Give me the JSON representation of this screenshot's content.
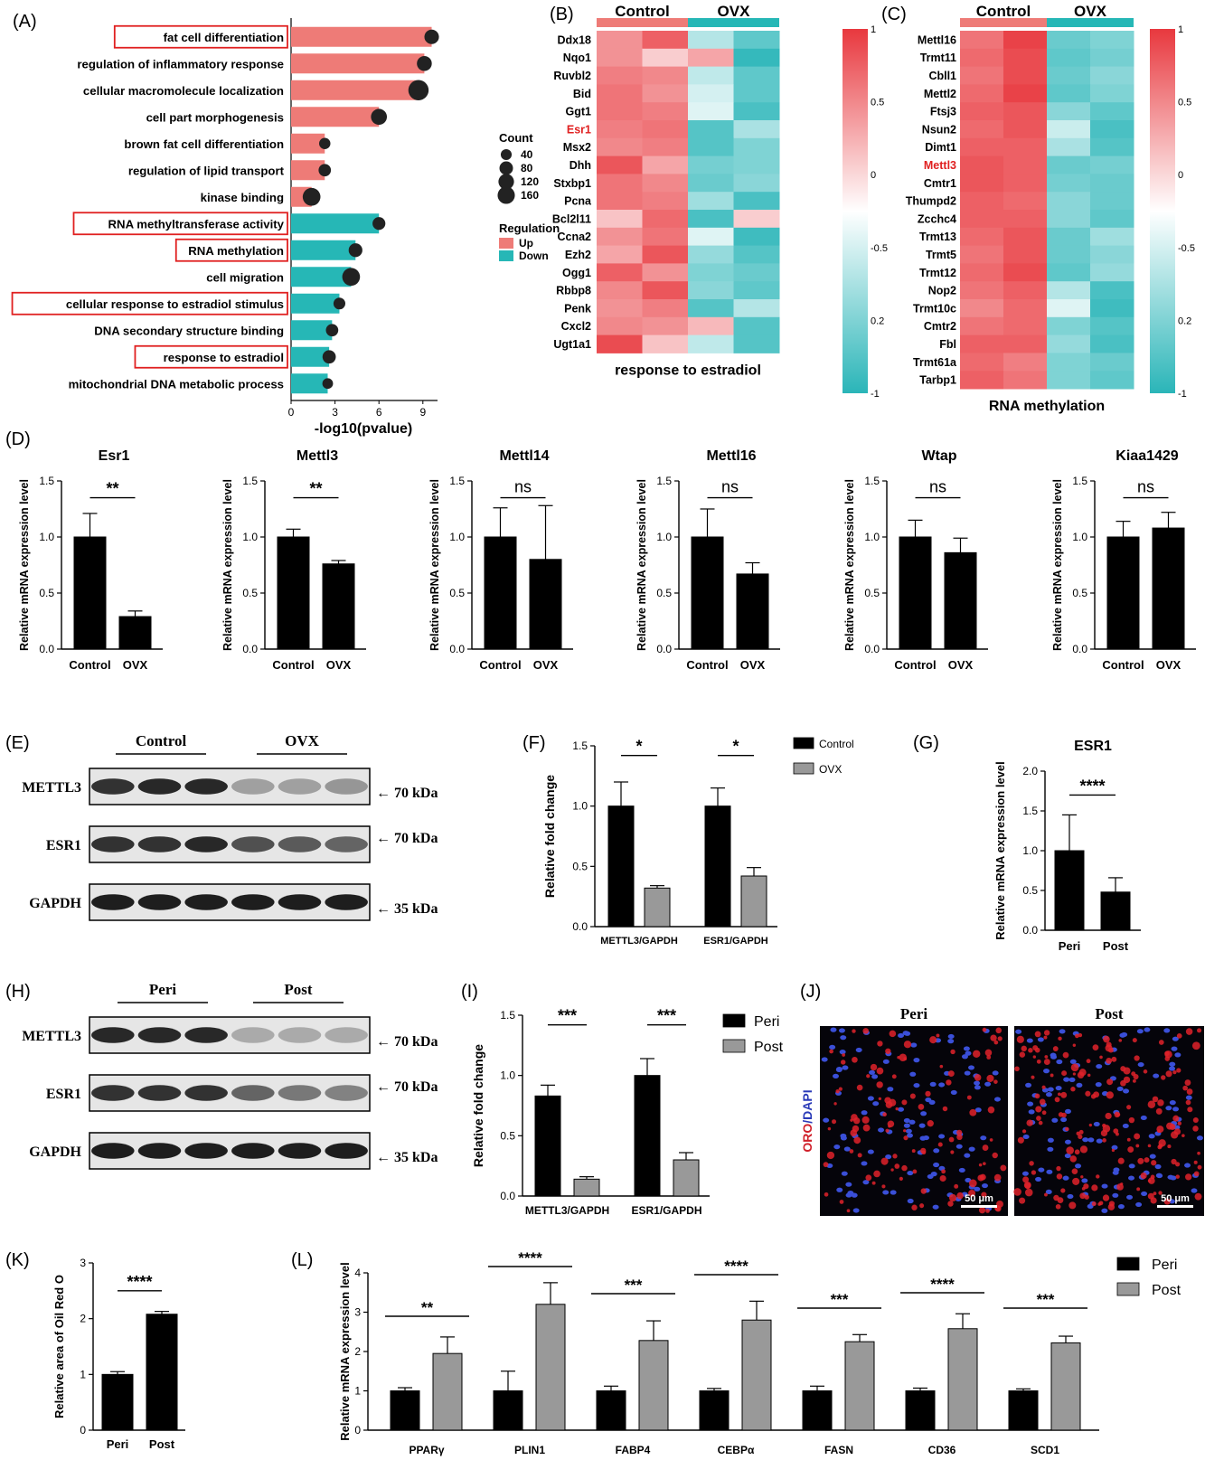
{
  "panel_letters": {
    "A": "(A)",
    "B": "(B)",
    "C": "(C)",
    "D": "(D)",
    "E": "(E)",
    "F": "(F)",
    "G": "(G)",
    "H": "(H)",
    "I": "(I)",
    "J": "(J)",
    "K": "(K)",
    "L": "(L)"
  },
  "colors": {
    "up": "#EE7B77",
    "down": "#26B7B6",
    "highlight_box": "#E02020",
    "control_bar": "#000000",
    "ovx_bar": "#999999",
    "heat_high": "#E8383E",
    "heat_mid": "#FFFFFF",
    "heat_low": "#2AB5B8",
    "red_label": "#E02020"
  },
  "panelA": {
    "terms": [
      {
        "label": "fat cell differentiation",
        "value": 9.6,
        "count": 60,
        "reg": "Up",
        "boxed": true
      },
      {
        "label": "regulation of inflammatory response",
        "value": 9.1,
        "count": 65,
        "reg": "Up",
        "boxed": false
      },
      {
        "label": "cellular macromolecule localization",
        "value": 8.7,
        "count": 160,
        "reg": "Up",
        "boxed": false
      },
      {
        "label": "cell part morphogenesis",
        "value": 6.0,
        "count": 80,
        "reg": "Up",
        "boxed": false
      },
      {
        "label": "brown fat cell differentiation",
        "value": 2.3,
        "count": 25,
        "reg": "Up",
        "boxed": false
      },
      {
        "label": "regulation of lipid transport",
        "value": 2.3,
        "count": 35,
        "reg": "Up",
        "boxed": false
      },
      {
        "label": "kinase binding",
        "value": 1.4,
        "count": 110,
        "reg": "Up",
        "boxed": false
      },
      {
        "label": "RNA methyltransferase activity",
        "value": 6.0,
        "count": 40,
        "reg": "Down",
        "boxed": true
      },
      {
        "label": "RNA methylation",
        "value": 4.4,
        "count": 50,
        "reg": "Down",
        "boxed": true
      },
      {
        "label": "cell migration",
        "value": 4.1,
        "count": 110,
        "reg": "Down",
        "boxed": false
      },
      {
        "label": "cellular response to estradiol stimulus",
        "value": 3.3,
        "count": 30,
        "reg": "Down",
        "boxed": true
      },
      {
        "label": "DNA secondary structure binding",
        "value": 2.8,
        "count": 35,
        "reg": "Down",
        "boxed": false
      },
      {
        "label": "response to estradiol",
        "value": 2.6,
        "count": 45,
        "reg": "Down",
        "boxed": true
      },
      {
        "label": "mitochondrial DNA metabolic process",
        "value": 2.5,
        "count": 20,
        "reg": "Down",
        "boxed": false
      }
    ],
    "xticks": [
      "0",
      "3",
      "6",
      "9"
    ],
    "xlabel": "-log10(pvalue)",
    "legend_count_title": "Count",
    "legend_counts": [
      "40",
      "80",
      "120",
      "160"
    ],
    "legend_reg_title": "Regulation",
    "legend_reg": [
      "Up",
      "Down"
    ]
  },
  "panelB": {
    "groups": [
      "Control",
      "OVX"
    ],
    "title": "response to estradiol",
    "genes": [
      "Ddx18",
      "Nqo1",
      "Ruvbl2",
      "Bid",
      "Ggt1",
      "Esr1",
      "Msx2",
      "Dhh",
      "Stxbp1",
      "Pcna",
      "Bcl2l11",
      "Ccna2",
      "Ezh2",
      "Ogg1",
      "Rbbp8",
      "Penk",
      "Cxcl2",
      "Ugt1a1"
    ],
    "red_gene": "Esr1",
    "matrix": [
      [
        0.55,
        0.8,
        -0.35,
        -0.75
      ],
      [
        0.55,
        0.25,
        0.45,
        -0.95
      ],
      [
        0.65,
        0.6,
        -0.3,
        -0.75
      ],
      [
        0.7,
        0.55,
        -0.2,
        -0.75
      ],
      [
        0.7,
        0.65,
        -0.15,
        -0.85
      ],
      [
        0.65,
        0.7,
        -0.8,
        -0.4
      ],
      [
        0.6,
        0.65,
        -0.8,
        -0.6
      ],
      [
        0.85,
        0.45,
        -0.65,
        -0.6
      ],
      [
        0.7,
        0.6,
        -0.7,
        -0.55
      ],
      [
        0.7,
        0.65,
        -0.45,
        -0.85
      ],
      [
        0.3,
        0.75,
        -0.85,
        0.25
      ],
      [
        0.55,
        0.7,
        -0.15,
        -0.9
      ],
      [
        0.45,
        0.85,
        -0.5,
        -0.8
      ],
      [
        0.8,
        0.55,
        -0.6,
        -0.7
      ],
      [
        0.6,
        0.85,
        -0.55,
        -0.75
      ],
      [
        0.55,
        0.65,
        -0.8,
        -0.35
      ],
      [
        0.6,
        0.55,
        0.35,
        -0.8
      ],
      [
        0.9,
        0.3,
        -0.3,
        -0.8
      ]
    ],
    "scale_labels": [
      "1",
      "0.5",
      "0",
      "-0.5",
      "0.2",
      "-1"
    ]
  },
  "panelC": {
    "groups": [
      "Control",
      "OVX"
    ],
    "title": "RNA methylation",
    "genes": [
      "Mettl16",
      "Trmt11",
      "Cbll1",
      "Mettl2",
      "Ftsj3",
      "Nsun2",
      "Dimt1",
      "Mettl3",
      "Cmtr1",
      "Thumpd2",
      "Zcchc4",
      "Trmt13",
      "Trmt5",
      "Trmt12",
      "Nop2",
      "Trmt10c",
      "Cmtr2",
      "Fbl",
      "Trmt61a",
      "Tarbp1"
    ],
    "red_gene": "Mettl3",
    "matrix": [
      [
        0.7,
        0.95,
        -0.7,
        -0.6
      ],
      [
        0.75,
        0.9,
        -0.75,
        -0.65
      ],
      [
        0.7,
        0.9,
        -0.7,
        -0.55
      ],
      [
        0.75,
        0.95,
        -0.75,
        -0.6
      ],
      [
        0.8,
        0.85,
        -0.55,
        -0.75
      ],
      [
        0.75,
        0.85,
        -0.25,
        -0.85
      ],
      [
        0.8,
        0.8,
        -0.4,
        -0.8
      ],
      [
        0.85,
        0.8,
        -0.7,
        -0.65
      ],
      [
        0.85,
        0.8,
        -0.65,
        -0.7
      ],
      [
        0.8,
        0.75,
        -0.55,
        -0.7
      ],
      [
        0.8,
        0.8,
        -0.55,
        -0.75
      ],
      [
        0.75,
        0.85,
        -0.7,
        -0.45
      ],
      [
        0.7,
        0.85,
        -0.7,
        -0.55
      ],
      [
        0.75,
        0.9,
        -0.75,
        -0.5
      ],
      [
        0.7,
        0.8,
        -0.35,
        -0.85
      ],
      [
        0.6,
        0.75,
        -0.15,
        -0.9
      ],
      [
        0.7,
        0.75,
        -0.6,
        -0.8
      ],
      [
        0.8,
        0.8,
        -0.5,
        -0.85
      ],
      [
        0.75,
        0.65,
        -0.6,
        -0.7
      ],
      [
        0.8,
        0.7,
        -0.6,
        -0.75
      ]
    ],
    "scale_labels": [
      "1",
      "0.5",
      "0",
      "-0.5",
      "0.2",
      "-1"
    ]
  },
  "chart_data": [
    {
      "type": "bar",
      "panel": "A",
      "categories": [
        "fat cell differentiation",
        "regulation of inflammatory response",
        "cellular macromolecule localization",
        "cell part morphogenesis",
        "brown fat cell differentiation",
        "regulation of lipid transport",
        "kinase binding",
        "RNA methyltransferase activity",
        "RNA methylation",
        "cell migration",
        "cellular response to estradiol stimulus",
        "DNA secondary structure binding",
        "response to estradiol",
        "mitochondrial DNA metabolic process"
      ],
      "values": [
        9.6,
        9.1,
        8.7,
        6.0,
        2.3,
        2.3,
        1.4,
        6.0,
        4.4,
        4.1,
        3.3,
        2.8,
        2.6,
        2.5
      ],
      "xlabel": "-log10(pvalue)",
      "xlim": [
        0,
        10
      ]
    },
    {
      "type": "bar",
      "panel": "D",
      "title": "Esr1",
      "categories": [
        "Control",
        "OVX"
      ],
      "values": [
        1.0,
        0.29
      ],
      "errors": [
        0.21,
        0.05
      ],
      "sig": "**",
      "ylabel": "Relative mRNA expression level",
      "ylim": [
        0,
        1.5
      ]
    },
    {
      "type": "bar",
      "panel": "D",
      "title": "Mettl3",
      "categories": [
        "Control",
        "OVX"
      ],
      "values": [
        1.0,
        0.76
      ],
      "errors": [
        0.07,
        0.03
      ],
      "sig": "**",
      "ylabel": "Relative mRNA expression level",
      "ylim": [
        0,
        1.5
      ]
    },
    {
      "type": "bar",
      "panel": "D",
      "title": "Mettl14",
      "categories": [
        "Control",
        "OVX"
      ],
      "values": [
        1.0,
        0.8
      ],
      "errors": [
        0.26,
        0.48
      ],
      "sig": "ns",
      "ylabel": "Relative mRNA expression level",
      "ylim": [
        0,
        1.5
      ]
    },
    {
      "type": "bar",
      "panel": "D",
      "title": "Mettl16",
      "categories": [
        "Control",
        "OVX"
      ],
      "values": [
        1.0,
        0.67
      ],
      "errors": [
        0.25,
        0.1
      ],
      "sig": "ns",
      "ylabel": "Relative mRNA expression level",
      "ylim": [
        0,
        1.5
      ]
    },
    {
      "type": "bar",
      "panel": "D",
      "title": "Wtap",
      "categories": [
        "Control",
        "OVX"
      ],
      "values": [
        1.0,
        0.86
      ],
      "errors": [
        0.15,
        0.13
      ],
      "sig": "ns",
      "ylabel": "Relative mRNA expression level",
      "ylim": [
        0,
        1.5
      ]
    },
    {
      "type": "bar",
      "panel": "D",
      "title": "Kiaa1429",
      "categories": [
        "Control",
        "OVX"
      ],
      "values": [
        1.0,
        1.08
      ],
      "errors": [
        0.14,
        0.14
      ],
      "sig": "ns",
      "ylabel": "Relative mRNA expression level",
      "ylim": [
        0,
        1.5
      ]
    },
    {
      "type": "bar",
      "panel": "F",
      "categories": [
        "METTL3/GAPDH",
        "ESR1/GAPDH"
      ],
      "series": [
        {
          "name": "Control",
          "values": [
            1.0,
            1.0
          ],
          "errors": [
            0.2,
            0.15
          ]
        },
        {
          "name": "OVX",
          "values": [
            0.32,
            0.42
          ],
          "errors": [
            0.02,
            0.07
          ]
        }
      ],
      "sig": [
        "*",
        "*"
      ],
      "ylabel": "Relative fold change",
      "ylim": [
        0,
        1.5
      ]
    },
    {
      "type": "bar",
      "panel": "G",
      "title": "ESR1",
      "categories": [
        "Peri",
        "Post"
      ],
      "values": [
        1.0,
        0.48
      ],
      "errors": [
        0.45,
        0.18
      ],
      "sig": "****",
      "ylabel": "Relative mRNA expression level",
      "ylim": [
        0,
        2.0
      ]
    },
    {
      "type": "bar",
      "panel": "I",
      "categories": [
        "METTL3/GAPDH",
        "ESR1/GAPDH"
      ],
      "series": [
        {
          "name": "Peri",
          "values": [
            0.83,
            1.0
          ],
          "errors": [
            0.09,
            0.14
          ]
        },
        {
          "name": "Post",
          "values": [
            0.14,
            0.3
          ],
          "errors": [
            0.02,
            0.06
          ]
        }
      ],
      "sig": [
        "***",
        "***"
      ],
      "ylabel": "Relative fold change",
      "ylim": [
        0,
        1.5
      ]
    },
    {
      "type": "bar",
      "panel": "K",
      "categories": [
        "Peri",
        "Post"
      ],
      "values": [
        1.0,
        2.08
      ],
      "errors": [
        0.05,
        0.05
      ],
      "sig": "****",
      "ylabel": "Relative area of Oil Red O",
      "ylim": [
        0,
        3
      ]
    },
    {
      "type": "bar",
      "panel": "L",
      "categories": [
        "PPARγ",
        "PLIN1",
        "FABP4",
        "CEBPα",
        "FASN",
        "CD36",
        "SCD1"
      ],
      "series": [
        {
          "name": "Peri",
          "values": [
            1.0,
            1.0,
            1.0,
            1.0,
            1.0,
            1.0,
            1.0
          ],
          "errors": [
            0.08,
            0.5,
            0.12,
            0.06,
            0.12,
            0.07,
            0.05
          ]
        },
        {
          "name": "Post",
          "values": [
            1.95,
            3.2,
            2.28,
            2.8,
            2.25,
            2.58,
            2.22
          ],
          "errors": [
            0.42,
            0.55,
            0.5,
            0.48,
            0.18,
            0.38,
            0.17
          ]
        }
      ],
      "sig": [
        "**",
        "****",
        "***",
        "****",
        "***",
        "****",
        "***"
      ],
      "ylabel": "Relative mRNA expression level",
      "ylim": [
        0,
        4
      ]
    }
  ],
  "panelD": {
    "ylabel": "Relative mRNA expression level",
    "yticks": [
      "0.0",
      "0.5",
      "1.0",
      "1.5"
    ],
    "groups": [
      "Control",
      "OVX"
    ]
  },
  "panelE": {
    "groups": [
      "Control",
      "OVX"
    ],
    "rows": [
      {
        "label": "METTL3",
        "marker": "← 70 kDa"
      },
      {
        "label": "ESR1",
        "marker": "← 70 kDa"
      },
      {
        "label": "GAPDH",
        "marker": "← 35 kDa"
      }
    ],
    "intensity": [
      [
        0.85,
        0.9,
        0.9,
        0.3,
        0.3,
        0.35
      ],
      [
        0.85,
        0.85,
        0.9,
        0.7,
        0.65,
        0.6
      ],
      [
        0.95,
        0.95,
        0.95,
        0.95,
        0.95,
        0.95
      ]
    ]
  },
  "panelF": {
    "ylabel": "Relative fold change",
    "yticks": [
      "0.0",
      "0.5",
      "1.0",
      "1.5"
    ],
    "legend": [
      "Control",
      "OVX"
    ]
  },
  "panelG": {
    "title": "ESR1",
    "ylabel": "Relative mRNA expression level",
    "yticks": [
      "0.0",
      "0.5",
      "1.0",
      "1.5",
      "2.0"
    ]
  },
  "panelH": {
    "groups": [
      "Peri",
      "Post"
    ],
    "rows": [
      {
        "label": "METTL3",
        "marker": "← 70 kDa"
      },
      {
        "label": "ESR1",
        "marker": "← 70 kDa"
      },
      {
        "label": "GAPDH",
        "marker": "← 35 kDa"
      }
    ],
    "intensity": [
      [
        0.9,
        0.9,
        0.9,
        0.25,
        0.25,
        0.25
      ],
      [
        0.85,
        0.85,
        0.85,
        0.6,
        0.5,
        0.45
      ],
      [
        0.95,
        0.95,
        0.95,
        0.95,
        0.95,
        0.95
      ]
    ]
  },
  "panelI": {
    "ylabel": "Relative fold change",
    "yticks": [
      "0.0",
      "0.5",
      "1.0",
      "1.5"
    ],
    "legend": [
      "Peri",
      "Post"
    ]
  },
  "panelJ": {
    "titles": [
      "Peri",
      "Post"
    ],
    "stain_label_red": "ORO",
    "stain_label_sep": "/",
    "stain_label_blue": "DAPI",
    "scale_bar": "50 μm"
  },
  "panelK": {
    "ylabel": "Relative area of Oil Red O",
    "yticks": [
      "0",
      "1",
      "2",
      "3"
    ]
  },
  "panelL": {
    "ylabel": "Relative mRNA expression level",
    "yticks": [
      "0",
      "1",
      "2",
      "3",
      "4"
    ],
    "legend": [
      "Peri",
      "Post"
    ]
  }
}
